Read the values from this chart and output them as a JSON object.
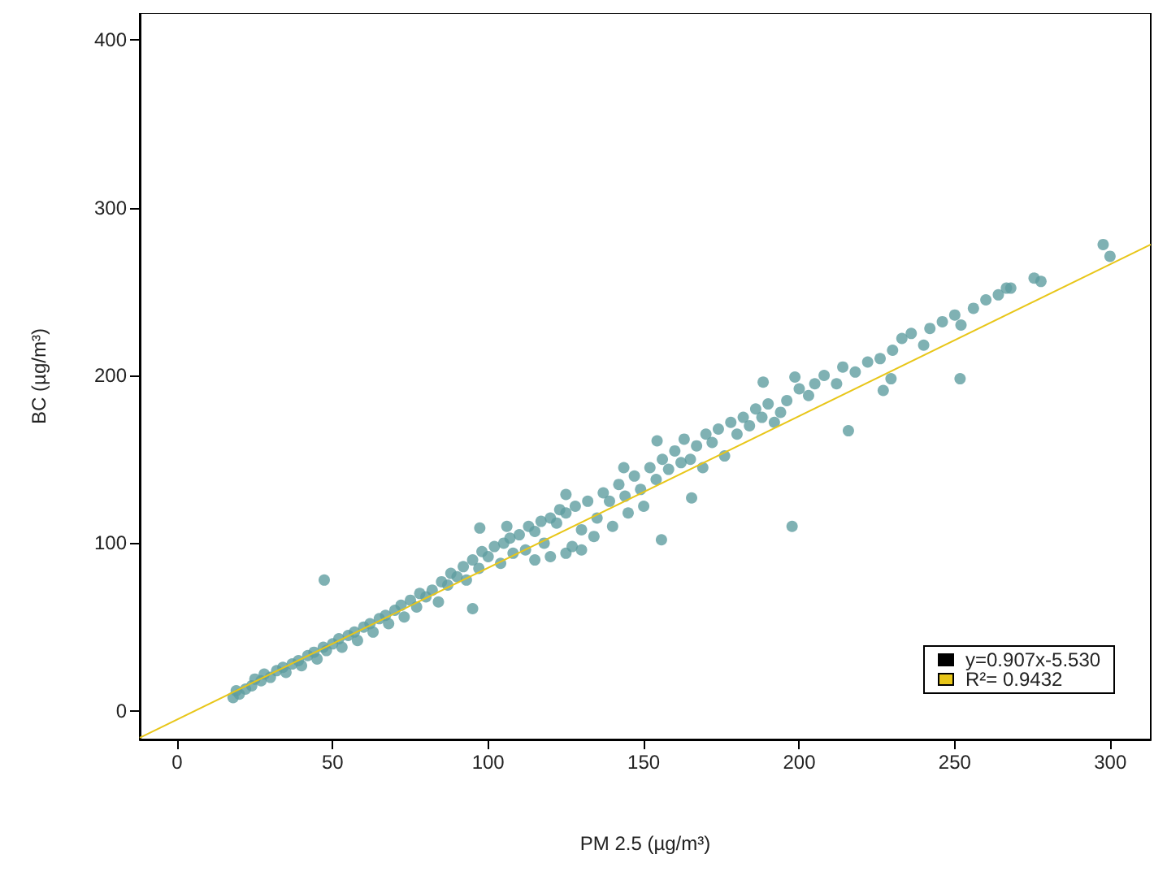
{
  "chart_data": {
    "type": "scatter",
    "xlabel": "PM 2.5 (µg/m³)",
    "ylabel": "BC (µg/m³)",
    "xlim": [
      -12,
      313
    ],
    "xticks": [
      0,
      50,
      100,
      150,
      200,
      250,
      300
    ],
    "ylim": [
      -17,
      416
    ],
    "yticks": [
      0,
      100,
      200,
      300,
      400
    ],
    "grid": false,
    "annotations": [
      "y=0.907x-5.530",
      "R²= 0.9432"
    ],
    "series": [
      {
        "color": "#5f9ea0",
        "marker": "circle",
        "x": [
          18,
          19,
          20,
          22,
          24,
          25,
          27,
          28,
          30,
          32,
          34,
          35,
          37,
          39,
          40,
          42,
          44,
          45,
          47,
          48,
          50,
          52,
          53,
          55,
          57,
          58,
          60,
          62,
          63,
          65,
          67,
          68,
          70,
          72,
          73,
          75,
          77,
          78,
          80,
          82,
          84,
          85,
          87,
          88,
          90,
          92,
          93,
          95,
          97,
          98,
          100,
          102,
          104,
          105,
          107,
          108,
          110,
          112,
          113,
          115,
          115,
          117,
          118,
          120,
          120,
          122,
          123,
          125,
          125,
          127,
          128,
          130,
          130,
          132,
          134,
          135,
          137,
          139,
          140,
          142,
          144,
          145,
          147,
          149,
          150,
          152,
          154,
          156,
          158,
          160,
          162,
          163,
          165,
          167,
          169,
          170,
          172,
          174,
          176,
          178,
          180,
          182,
          184,
          186,
          188,
          190,
          192,
          194,
          196,
          200,
          203,
          205,
          208,
          212,
          214,
          218,
          222,
          226,
          230,
          233,
          236,
          240,
          242,
          246,
          250,
          252,
          256,
          260,
          264,
          268,
          47.3,
          197.7,
          251.7,
          297.7,
          299.9,
          275.5,
          277.7,
          266.6,
          215.8,
          155.7,
          95,
          198.6,
          188.4,
          154.3,
          125,
          143.6,
          97.3,
          106,
          227,
          229.5,
          165.4
        ],
        "values": [
          8,
          12,
          10,
          13,
          15,
          19,
          18,
          22,
          20,
          24,
          26,
          23,
          28,
          30,
          27,
          33,
          35,
          31,
          38,
          36,
          40,
          43,
          38,
          45,
          47,
          42,
          50,
          52,
          47,
          55,
          57,
          52,
          60,
          63,
          56,
          66,
          62,
          70,
          68,
          72,
          65,
          77,
          75,
          82,
          80,
          86,
          78,
          90,
          85,
          95,
          92,
          98,
          88,
          100,
          103,
          94,
          105,
          96,
          110,
          107,
          90,
          113,
          100,
          115,
          92,
          112,
          120,
          118,
          94,
          98,
          122,
          108,
          96,
          125,
          104,
          115,
          130,
          125,
          110,
          135,
          128,
          118,
          140,
          132,
          122,
          145,
          138,
          150,
          144,
          155,
          148,
          162,
          150,
          158,
          145,
          165,
          160,
          168,
          152,
          172,
          165,
          175,
          170,
          180,
          175,
          183,
          172,
          178,
          185,
          192,
          188,
          195,
          200,
          195,
          205,
          202,
          208,
          210,
          215,
          222,
          225,
          218,
          228,
          232,
          236,
          230,
          240,
          245,
          248,
          252,
          78,
          110,
          198,
          278,
          271,
          258,
          256,
          252,
          167,
          102,
          61,
          199,
          196,
          161,
          129,
          145,
          109,
          110,
          191,
          198,
          127
        ]
      },
      {
        "type": "line",
        "color": "#e8c619",
        "marker": "none",
        "x": [
          -12,
          313
        ],
        "values": [
          -16,
          278
        ]
      }
    ]
  }
}
